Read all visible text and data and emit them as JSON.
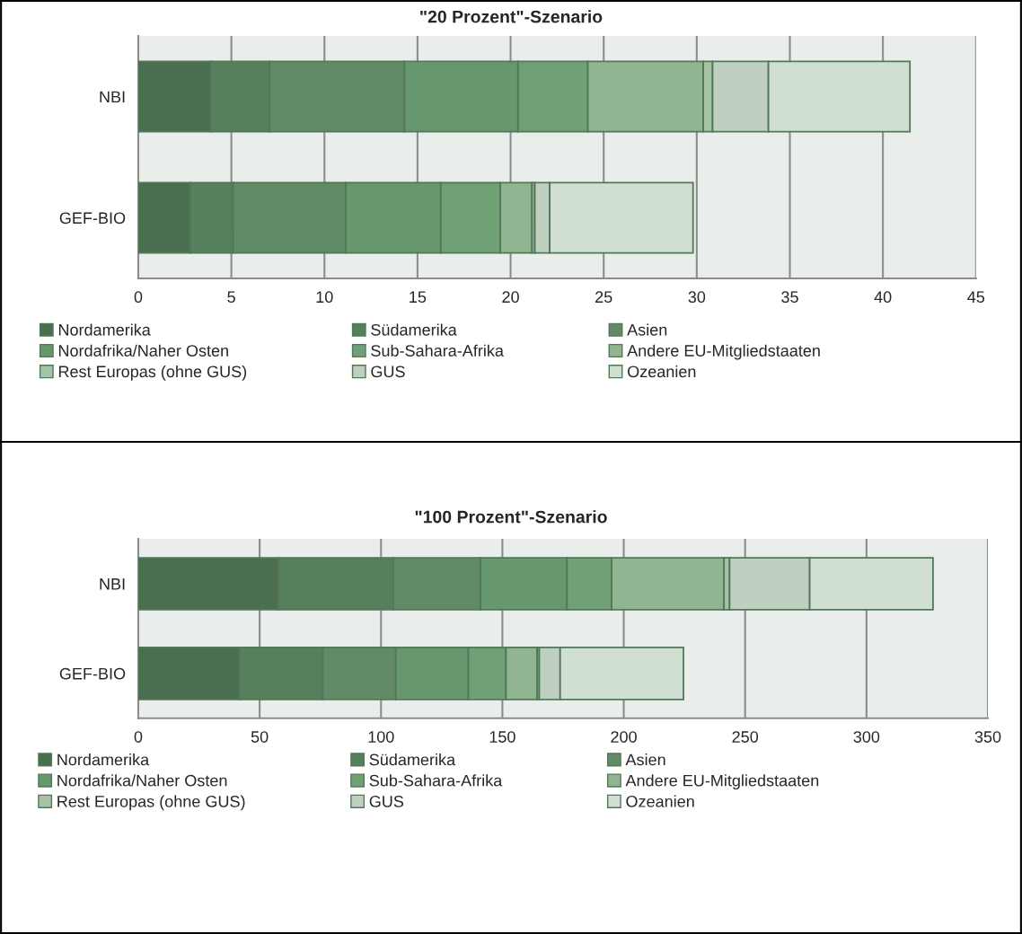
{
  "chart_data": [
    {
      "type": "bar",
      "orientation": "horizontal",
      "stacked": true,
      "title": "\"20 Prozent\"-Szenario",
      "categories": [
        "NBI",
        "GEF-BIO"
      ],
      "series": [
        {
          "name": "Nordamerika",
          "color": "#4b6e4f",
          "values": [
            3.9,
            2.8
          ]
        },
        {
          "name": "Südamerika",
          "color": "#567f5c",
          "values": [
            3.15,
            2.3
          ]
        },
        {
          "name": "Asien",
          "color": "#618b66",
          "values": [
            7.25,
            6.05
          ]
        },
        {
          "name": "Nordafrika/Naher Osten",
          "color": "#67976c",
          "values": [
            6.1,
            5.1
          ]
        },
        {
          "name": "Sub-Sahara-Afrika",
          "color": "#6fa175",
          "values": [
            3.75,
            3.2
          ]
        },
        {
          "name": "Andere EU-Mitgliedstaaten",
          "color": "#91b491",
          "values": [
            6.2,
            1.7
          ]
        },
        {
          "name": "Rest Europas (ohne GUS)",
          "color": "#a6c4a5",
          "values": [
            0.5,
            0.15
          ]
        },
        {
          "name": "GUS",
          "color": "#bfd0c1",
          "values": [
            3.0,
            0.8
          ]
        },
        {
          "name": "Ozeanien",
          "color": "#d0dfd2",
          "values": [
            7.6,
            7.7
          ]
        }
      ],
      "xlim": [
        0,
        45
      ],
      "xticks": [
        0,
        5,
        10,
        15,
        20,
        25,
        30,
        35,
        40,
        45
      ],
      "grid": "x",
      "legend": "bottom"
    },
    {
      "type": "bar",
      "orientation": "horizontal",
      "stacked": true,
      "title": "\"100 Prozent\"-Szenario",
      "categories": [
        "NBI",
        "GEF-BIO"
      ],
      "series": [
        {
          "name": "Nordamerika",
          "color": "#4b6e4f",
          "values": [
            57.8,
            41.7
          ]
        },
        {
          "name": "Südamerika",
          "color": "#567f5c",
          "values": [
            47.3,
            34.4
          ]
        },
        {
          "name": "Asien",
          "color": "#618b66",
          "values": [
            35.9,
            30.0
          ]
        },
        {
          "name": "Nordafrika/Naher Osten",
          "color": "#67976c",
          "values": [
            35.6,
            29.9
          ]
        },
        {
          "name": "Sub-Sahara-Afrika",
          "color": "#6fa175",
          "values": [
            18.4,
            15.5
          ]
        },
        {
          "name": "Andere EU-Mitgliedstaaten",
          "color": "#91b491",
          "values": [
            46.3,
            12.8
          ]
        },
        {
          "name": "Rest Europas (ohne GUS)",
          "color": "#a6c4a5",
          "values": [
            2.3,
            0.9
          ]
        },
        {
          "name": "GUS",
          "color": "#bfd0c1",
          "values": [
            33.0,
            8.6
          ]
        },
        {
          "name": "Ozeanien",
          "color": "#d0dfd2",
          "values": [
            50.8,
            50.8
          ]
        }
      ],
      "xlim": [
        0,
        350
      ],
      "xticks": [
        0,
        50,
        100,
        150,
        200,
        250,
        300,
        350
      ],
      "grid": "x",
      "legend": "bottom"
    }
  ]
}
